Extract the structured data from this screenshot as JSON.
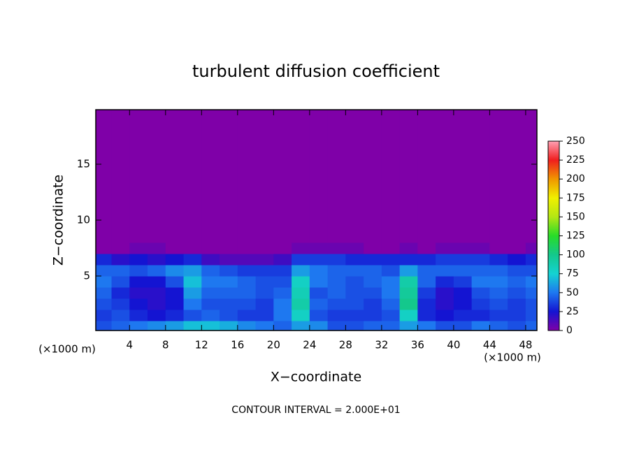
{
  "chart_data": {
    "type": "heatmap",
    "title": "turbulent diffusion coefficient",
    "xlabel": "X−coordinate",
    "ylabel": "Z−coordinate",
    "x_unit_labels": [
      "(×1000 m)",
      "(×1000 m)"
    ],
    "footnote": "CONTOUR INTERVAL = 2.000E+01",
    "xlim": [
      0.25,
      49.25
    ],
    "ylim": [
      0.125,
      19.875
    ],
    "xticks": [
      4,
      8,
      12,
      16,
      20,
      24,
      28,
      32,
      36,
      40,
      44,
      48
    ],
    "yticks": [
      5,
      10,
      15
    ],
    "x_edges": [
      0,
      2,
      4,
      6,
      8,
      10,
      12,
      14,
      16,
      18,
      20,
      22,
      24,
      26,
      28,
      30,
      32,
      34,
      36,
      38,
      40,
      42,
      44,
      46,
      48,
      50
    ],
    "z_edges": [
      0,
      1,
      2,
      3,
      4,
      5,
      6,
      7,
      8,
      20
    ],
    "values": [
      [
        40,
        45,
        50,
        55,
        60,
        70,
        70,
        65,
        55,
        50,
        45,
        60,
        55,
        40,
        40,
        45,
        45,
        60,
        50,
        40,
        40,
        50,
        45,
        40,
        45
      ],
      [
        35,
        40,
        30,
        25,
        30,
        40,
        45,
        40,
        35,
        35,
        50,
        80,
        40,
        35,
        35,
        35,
        40,
        80,
        30,
        25,
        30,
        30,
        35,
        35,
        40
      ],
      [
        40,
        35,
        25,
        20,
        25,
        50,
        40,
        40,
        40,
        35,
        50,
        90,
        45,
        40,
        40,
        35,
        45,
        100,
        30,
        20,
        25,
        35,
        40,
        35,
        40
      ],
      [
        45,
        30,
        20,
        20,
        25,
        60,
        45,
        45,
        45,
        40,
        45,
        85,
        40,
        45,
        40,
        40,
        50,
        95,
        35,
        20,
        25,
        40,
        45,
        40,
        45
      ],
      [
        50,
        40,
        25,
        25,
        40,
        70,
        50,
        50,
        45,
        40,
        40,
        80,
        50,
        45,
        40,
        45,
        50,
        90,
        45,
        30,
        35,
        50,
        50,
        45,
        50
      ],
      [
        45,
        45,
        40,
        45,
        55,
        60,
        45,
        40,
        35,
        35,
        35,
        60,
        50,
        45,
        45,
        45,
        40,
        60,
        45,
        45,
        45,
        45,
        45,
        40,
        40
      ],
      [
        30,
        20,
        25,
        20,
        25,
        30,
        15,
        10,
        10,
        10,
        15,
        35,
        35,
        35,
        30,
        30,
        30,
        30,
        30,
        35,
        35,
        35,
        30,
        25,
        30
      ],
      [
        0,
        0,
        5,
        5,
        0,
        0,
        0,
        0,
        0,
        0,
        0,
        5,
        5,
        5,
        5,
        0,
        0,
        5,
        0,
        5,
        5,
        5,
        0,
        0,
        5
      ],
      [
        0,
        0,
        0,
        0,
        0,
        0,
        0,
        0,
        0,
        0,
        0,
        0,
        0,
        0,
        0,
        0,
        0,
        0,
        0,
        0,
        0,
        0,
        0,
        0,
        0
      ]
    ],
    "clim": [
      0,
      250
    ],
    "cticks": [
      0,
      25,
      50,
      75,
      100,
      125,
      150,
      175,
      200,
      225,
      250
    ],
    "colors": [
      "#7f00a8",
      "#1414d2",
      "#1e78f0",
      "#14d2d2",
      "#14c88c",
      "#28dc28",
      "#b4e614",
      "#f0f000",
      "#f09600",
      "#f01e1e",
      "#ffa0b4"
    ]
  }
}
